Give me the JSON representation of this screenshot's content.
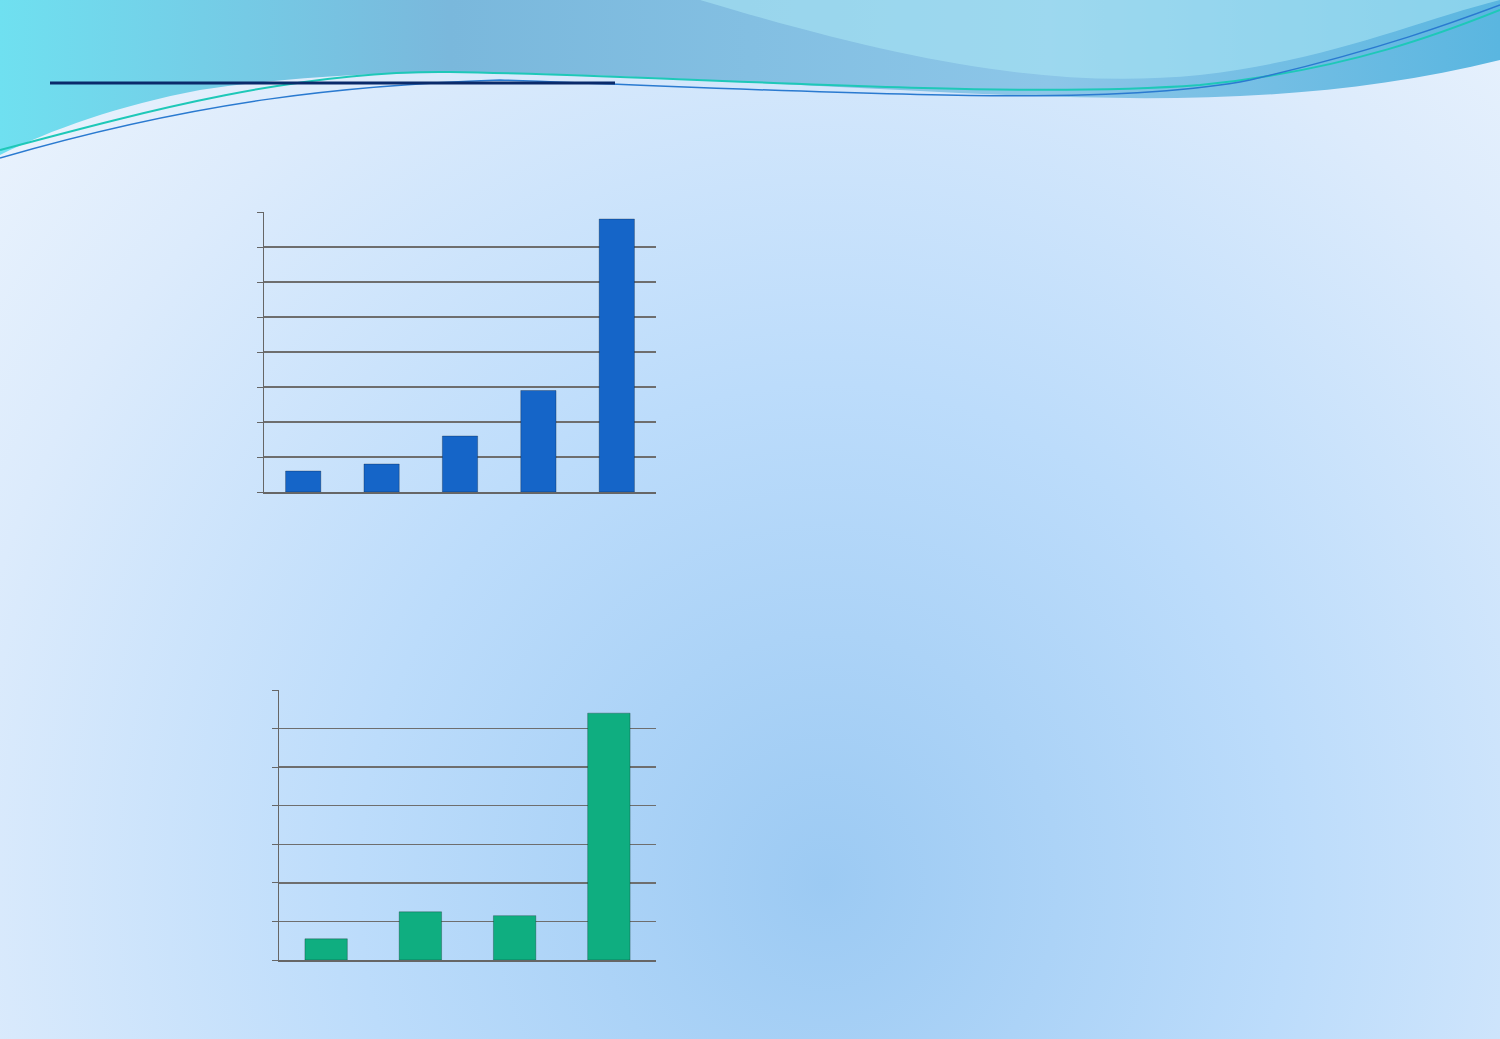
{
  "chart_data": [
    {
      "type": "bar",
      "categories": [
        null,
        null,
        null,
        null,
        null
      ],
      "values": [
        0.6,
        0.8,
        1.6,
        2.9,
        7.8
      ],
      "color": "#1565c8",
      "ylim": [
        0,
        8
      ],
      "yticks": [
        0,
        1,
        2,
        3,
        4,
        5,
        6,
        7,
        8
      ],
      "grid": true,
      "tick_labels": false
    },
    {
      "type": "bar",
      "categories": [
        null,
        null,
        null,
        null
      ],
      "values": [
        0.55,
        1.25,
        1.15,
        6.4
      ],
      "color": "#0fae80",
      "ylim": [
        0,
        7
      ],
      "yticks": [
        0,
        1,
        2,
        3,
        4,
        5,
        6,
        7
      ],
      "grid": true,
      "tick_labels": false
    }
  ]
}
